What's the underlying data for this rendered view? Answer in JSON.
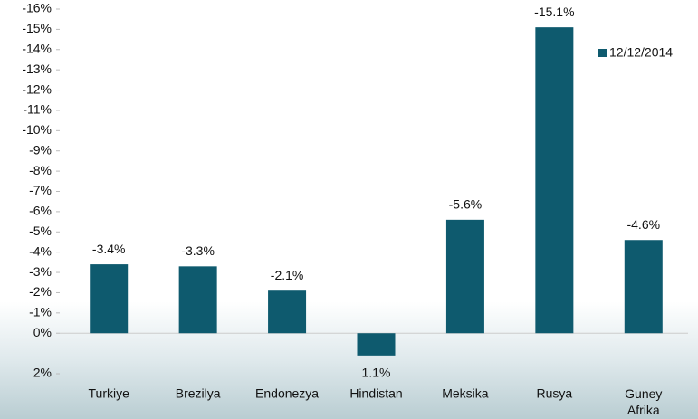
{
  "chart_data": {
    "type": "bar",
    "categories": [
      "Turkiye",
      "Brezilya",
      "Endonezya",
      "Hindistan",
      "Meksika",
      "Rusya",
      "Guney Afrika"
    ],
    "series": [
      {
        "name": "12/12/2014",
        "color": "#0e5a6e",
        "values": [
          -3.4,
          -3.3,
          -2.1,
          1.1,
          -5.6,
          -15.1,
          -4.6
        ],
        "value_labels": [
          "-3.4%",
          "-3.3%",
          "-2.1%",
          "1.1%",
          "-5.6%",
          "-15.1%",
          "-4.6%"
        ]
      }
    ],
    "ylim": [
      2,
      -16
    ],
    "yticks": [
      {
        "value": 2,
        "label": "2%"
      },
      {
        "value": 0,
        "label": "0%"
      },
      {
        "value": -1,
        "label": "-1%"
      },
      {
        "value": -2,
        "label": "-2%"
      },
      {
        "value": -3,
        "label": "-3%"
      },
      {
        "value": -4,
        "label": "-4%"
      },
      {
        "value": -5,
        "label": "-5%"
      },
      {
        "value": -6,
        "label": "-6%"
      },
      {
        "value": -7,
        "label": "-7%"
      },
      {
        "value": -8,
        "label": "-8%"
      },
      {
        "value": -9,
        "label": "-9%"
      },
      {
        "value": -10,
        "label": "-10%"
      },
      {
        "value": -11,
        "label": "-11%"
      },
      {
        "value": -12,
        "label": "-12%"
      },
      {
        "value": -13,
        "label": "-13%"
      },
      {
        "value": -14,
        "label": "-14%"
      },
      {
        "value": -15,
        "label": "-15%"
      },
      {
        "value": -16,
        "label": "-16%"
      }
    ],
    "legend": "top-right"
  }
}
